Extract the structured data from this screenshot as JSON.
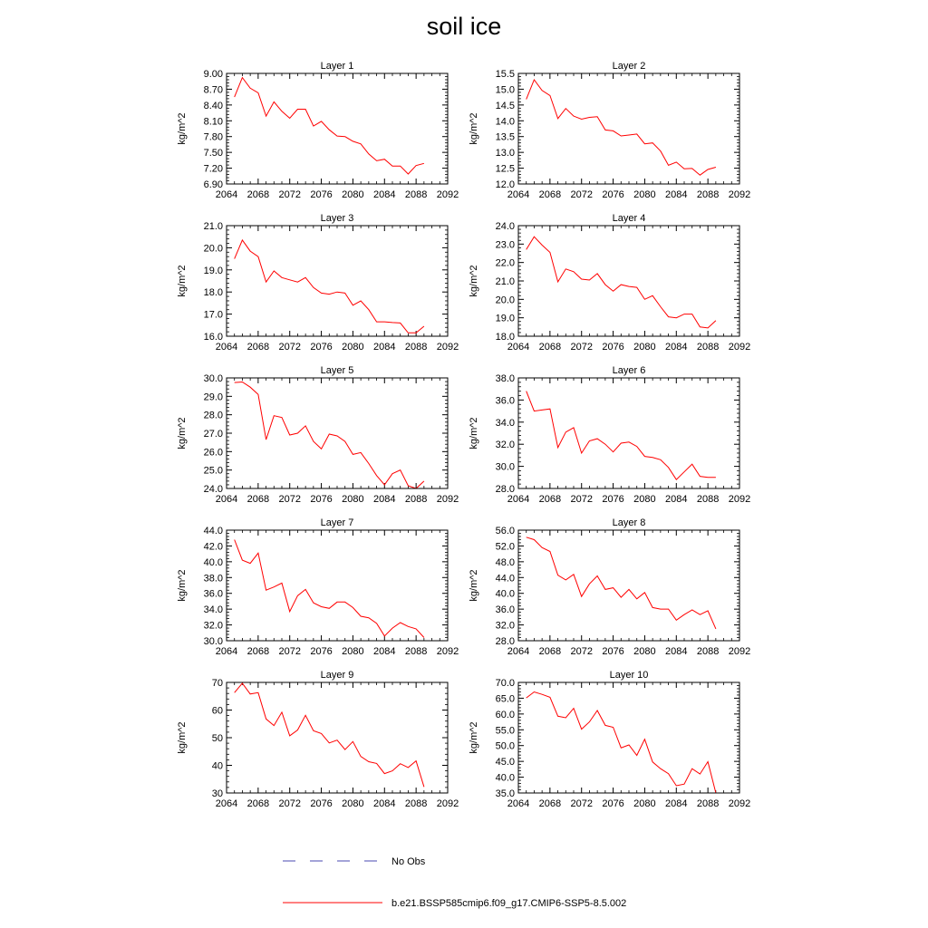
{
  "figure": {
    "title": "soil ice",
    "legend": [
      {
        "label": "No Obs",
        "color": "#4a4ab0",
        "style": "dashed"
      },
      {
        "label": "b.e21.BSSP585cmip6.f09_g17.CMIP6-SSP5-8.5.002",
        "color": "#ff0000",
        "style": "solid"
      }
    ]
  },
  "chart_data": [
    {
      "type": "line",
      "title": "Layer 1",
      "xlabel": "",
      "ylabel": "kg/m^2",
      "xlim": [
        2064,
        2092
      ],
      "ylim": [
        6.9,
        9.0
      ],
      "xticks": [
        2064,
        2068,
        2072,
        2076,
        2080,
        2084,
        2088,
        2092
      ],
      "yticks": [
        6.9,
        7.2,
        7.5,
        7.8,
        8.1,
        8.4,
        8.7,
        9.0
      ],
      "ytick_labels": [
        "6.90",
        "7.20",
        "7.50",
        "7.80",
        "8.10",
        "8.40",
        "8.70",
        "9.00"
      ],
      "series": [
        {
          "color": "#ff0000",
          "x": [
            2065,
            2066,
            2067,
            2068,
            2069,
            2070,
            2071,
            2072,
            2073,
            2074,
            2075,
            2076,
            2077,
            2078,
            2079,
            2080,
            2081,
            2082,
            2083,
            2084,
            2085,
            2086,
            2087,
            2088,
            2089
          ],
          "y": [
            8.55,
            8.92,
            8.72,
            8.63,
            8.19,
            8.46,
            8.28,
            8.15,
            8.32,
            8.32,
            8.0,
            8.09,
            7.93,
            7.81,
            7.8,
            7.71,
            7.66,
            7.47,
            7.34,
            7.37,
            7.24,
            7.24,
            7.09,
            7.25,
            7.29
          ]
        }
      ]
    },
    {
      "type": "line",
      "title": "Layer 2",
      "xlabel": "",
      "ylabel": "kg/m^2",
      "xlim": [
        2064,
        2092
      ],
      "ylim": [
        12.0,
        15.5
      ],
      "xticks": [
        2064,
        2068,
        2072,
        2076,
        2080,
        2084,
        2088,
        2092
      ],
      "yticks": [
        12.0,
        12.5,
        13.0,
        13.5,
        14.0,
        14.5,
        15.0,
        15.5
      ],
      "ytick_labels": [
        "12.0",
        "12.5",
        "13.0",
        "13.5",
        "14.0",
        "14.5",
        "15.0",
        "15.5"
      ],
      "series": [
        {
          "color": "#ff0000",
          "x": [
            2065,
            2066,
            2067,
            2068,
            2069,
            2070,
            2071,
            2072,
            2073,
            2074,
            2075,
            2076,
            2077,
            2078,
            2079,
            2080,
            2081,
            2082,
            2083,
            2084,
            2085,
            2086,
            2087,
            2088,
            2089
          ],
          "y": [
            14.68,
            15.3,
            14.96,
            14.8,
            14.07,
            14.39,
            14.15,
            14.05,
            14.11,
            14.13,
            13.71,
            13.68,
            13.52,
            13.55,
            13.58,
            13.27,
            13.3,
            13.04,
            12.59,
            12.69,
            12.48,
            12.49,
            12.28,
            12.46,
            12.53
          ]
        }
      ]
    },
    {
      "type": "line",
      "title": "Layer 3",
      "xlabel": "",
      "ylabel": "kg/m^2",
      "xlim": [
        2064,
        2092
      ],
      "ylim": [
        16.0,
        21.0
      ],
      "xticks": [
        2064,
        2068,
        2072,
        2076,
        2080,
        2084,
        2088,
        2092
      ],
      "yticks": [
        16,
        17,
        18,
        19,
        20,
        21
      ],
      "ytick_labels": [
        "16.0",
        "17.0",
        "18.0",
        "19.0",
        "20.0",
        "21.0"
      ],
      "series": [
        {
          "color": "#ff0000",
          "x": [
            2065,
            2066,
            2067,
            2068,
            2069,
            2070,
            2071,
            2072,
            2073,
            2074,
            2075,
            2076,
            2077,
            2078,
            2079,
            2080,
            2081,
            2082,
            2083,
            2084,
            2085,
            2086,
            2087,
            2088,
            2089
          ],
          "y": [
            19.5,
            20.35,
            19.85,
            19.6,
            18.45,
            18.95,
            18.65,
            18.55,
            18.45,
            18.65,
            18.2,
            17.95,
            17.9,
            18.0,
            17.95,
            17.4,
            17.6,
            17.2,
            16.65,
            16.65,
            16.62,
            16.6,
            16.15,
            16.15,
            16.45
          ]
        }
      ]
    },
    {
      "type": "line",
      "title": "Layer 4",
      "xlabel": "",
      "ylabel": "kg/m^2",
      "xlim": [
        2064,
        2092
      ],
      "ylim": [
        18.0,
        24.0
      ],
      "xticks": [
        2064,
        2068,
        2072,
        2076,
        2080,
        2084,
        2088,
        2092
      ],
      "yticks": [
        18,
        19,
        20,
        21,
        22,
        23,
        24
      ],
      "ytick_labels": [
        "18.0",
        "19.0",
        "20.0",
        "21.0",
        "22.0",
        "23.0",
        "24.0"
      ],
      "series": [
        {
          "color": "#ff0000",
          "x": [
            2065,
            2066,
            2067,
            2068,
            2069,
            2070,
            2071,
            2072,
            2073,
            2074,
            2075,
            2076,
            2077,
            2078,
            2079,
            2080,
            2081,
            2082,
            2083,
            2084,
            2085,
            2086,
            2087,
            2088,
            2089
          ],
          "y": [
            22.7,
            23.4,
            22.95,
            22.55,
            20.95,
            21.65,
            21.5,
            21.1,
            21.05,
            21.4,
            20.8,
            20.45,
            20.8,
            20.7,
            20.65,
            20.0,
            20.2,
            19.6,
            19.05,
            19.0,
            19.2,
            19.2,
            18.5,
            18.45,
            18.85
          ]
        }
      ]
    },
    {
      "type": "line",
      "title": "Layer 5",
      "xlabel": "",
      "ylabel": "kg/m^2",
      "xlim": [
        2064,
        2092
      ],
      "ylim": [
        24.0,
        30.0
      ],
      "xticks": [
        2064,
        2068,
        2072,
        2076,
        2080,
        2084,
        2088,
        2092
      ],
      "yticks": [
        24,
        25,
        26,
        27,
        28,
        29,
        30
      ],
      "ytick_labels": [
        "24.0",
        "25.0",
        "26.0",
        "27.0",
        "28.0",
        "29.0",
        "30.0"
      ],
      "series": [
        {
          "color": "#ff0000",
          "x": [
            2065,
            2066,
            2067,
            2068,
            2069,
            2070,
            2071,
            2072,
            2073,
            2074,
            2075,
            2076,
            2077,
            2078,
            2079,
            2080,
            2081,
            2082,
            2083,
            2084,
            2085,
            2086,
            2087,
            2088,
            2089
          ],
          "y": [
            29.75,
            29.78,
            29.5,
            29.1,
            26.65,
            27.95,
            27.85,
            26.9,
            27.0,
            27.4,
            26.55,
            26.15,
            26.95,
            26.85,
            26.55,
            25.85,
            25.95,
            25.35,
            24.7,
            24.2,
            24.8,
            25.0,
            24.15,
            24.0,
            24.4
          ]
        }
      ]
    },
    {
      "type": "line",
      "title": "Layer 6",
      "xlabel": "",
      "ylabel": "kg/m^2",
      "xlim": [
        2064,
        2092
      ],
      "ylim": [
        28.0,
        38.0
      ],
      "xticks": [
        2064,
        2068,
        2072,
        2076,
        2080,
        2084,
        2088,
        2092
      ],
      "yticks": [
        28,
        30,
        32,
        34,
        36,
        38
      ],
      "ytick_labels": [
        "28.0",
        "30.0",
        "32.0",
        "34.0",
        "36.0",
        "38.0"
      ],
      "series": [
        {
          "color": "#ff0000",
          "x": [
            2065,
            2066,
            2067,
            2068,
            2069,
            2070,
            2071,
            2072,
            2073,
            2074,
            2075,
            2076,
            2077,
            2078,
            2079,
            2080,
            2081,
            2082,
            2083,
            2084,
            2085,
            2086,
            2087,
            2088,
            2089
          ],
          "y": [
            36.8,
            35.0,
            35.1,
            35.2,
            31.7,
            33.1,
            33.5,
            31.2,
            32.3,
            32.5,
            32.0,
            31.3,
            32.1,
            32.2,
            31.8,
            30.9,
            30.8,
            30.6,
            29.9,
            28.8,
            29.5,
            30.2,
            29.1,
            29.0,
            29.0
          ]
        }
      ]
    },
    {
      "type": "line",
      "title": "Layer 7",
      "xlabel": "",
      "ylabel": "kg/m^2",
      "xlim": [
        2064,
        2092
      ],
      "ylim": [
        30.0,
        44.0
      ],
      "xticks": [
        2064,
        2068,
        2072,
        2076,
        2080,
        2084,
        2088,
        2092
      ],
      "yticks": [
        30,
        32,
        34,
        36,
        38,
        40,
        42,
        44
      ],
      "ytick_labels": [
        "30.0",
        "32.0",
        "34.0",
        "36.0",
        "38.0",
        "40.0",
        "42.0",
        "44.0"
      ],
      "series": [
        {
          "color": "#ff0000",
          "x": [
            2065,
            2066,
            2067,
            2068,
            2069,
            2070,
            2071,
            2072,
            2073,
            2074,
            2075,
            2076,
            2077,
            2078,
            2079,
            2080,
            2081,
            2082,
            2083,
            2084,
            2085,
            2086,
            2087,
            2088,
            2089
          ],
          "y": [
            42.8,
            40.2,
            39.8,
            41.1,
            36.4,
            36.8,
            37.3,
            33.7,
            35.7,
            36.5,
            34.8,
            34.3,
            34.1,
            34.9,
            34.9,
            34.2,
            33.1,
            32.9,
            32.2,
            30.6,
            31.6,
            32.3,
            31.8,
            31.5,
            30.4
          ]
        }
      ]
    },
    {
      "type": "line",
      "title": "Layer 8",
      "xlabel": "",
      "ylabel": "kg/m^2",
      "xlim": [
        2064,
        2092
      ],
      "ylim": [
        28.0,
        56.0
      ],
      "xticks": [
        2064,
        2068,
        2072,
        2076,
        2080,
        2084,
        2088,
        2092
      ],
      "yticks": [
        28,
        32,
        36,
        40,
        44,
        48,
        52,
        56
      ],
      "ytick_labels": [
        "28.0",
        "32.0",
        "36.0",
        "40.0",
        "44.0",
        "48.0",
        "52.0",
        "56.0"
      ],
      "series": [
        {
          "color": "#ff0000",
          "x": [
            2065,
            2066,
            2067,
            2068,
            2069,
            2070,
            2071,
            2072,
            2073,
            2074,
            2075,
            2076,
            2077,
            2078,
            2079,
            2080,
            2081,
            2082,
            2083,
            2084,
            2085,
            2086,
            2087,
            2088,
            2089
          ],
          "y": [
            54.2,
            53.6,
            51.6,
            50.6,
            44.6,
            43.4,
            44.8,
            39.2,
            42.4,
            44.4,
            41.0,
            41.4,
            39.0,
            41.0,
            38.6,
            40.2,
            36.4,
            36.0,
            36.0,
            33.2,
            34.6,
            35.8,
            34.6,
            35.6,
            31.0
          ]
        }
      ]
    },
    {
      "type": "line",
      "title": "Layer 9",
      "xlabel": "",
      "ylabel": "kg/m^2",
      "xlim": [
        2064,
        2092
      ],
      "ylim": [
        30,
        70
      ],
      "xticks": [
        2064,
        2068,
        2072,
        2076,
        2080,
        2084,
        2088,
        2092
      ],
      "yticks": [
        30,
        40,
        50,
        60,
        70
      ],
      "ytick_labels": [
        "30",
        "40",
        "50",
        "60",
        "70"
      ],
      "series": [
        {
          "color": "#ff0000",
          "x": [
            2065,
            2066,
            2067,
            2068,
            2069,
            2070,
            2071,
            2072,
            2073,
            2074,
            2075,
            2076,
            2077,
            2078,
            2079,
            2080,
            2081,
            2082,
            2083,
            2084,
            2085,
            2086,
            2087,
            2088,
            2089
          ],
          "y": [
            66.3,
            69.7,
            65.8,
            66.3,
            56.8,
            54.4,
            59.2,
            50.7,
            52.8,
            58.1,
            52.5,
            51.5,
            48.1,
            49.1,
            45.7,
            48.6,
            43.2,
            41.3,
            40.7,
            37.0,
            38.0,
            40.6,
            39.2,
            41.6,
            32.2
          ]
        }
      ]
    },
    {
      "type": "line",
      "title": "Layer 10",
      "xlabel": "",
      "ylabel": "kg/m^2",
      "xlim": [
        2064,
        2092
      ],
      "ylim": [
        35.0,
        70.0
      ],
      "xticks": [
        2064,
        2068,
        2072,
        2076,
        2080,
        2084,
        2088,
        2092
      ],
      "yticks": [
        35,
        40,
        45,
        50,
        55,
        60,
        65,
        70
      ],
      "ytick_labels": [
        "35.0",
        "40.0",
        "45.0",
        "50.0",
        "55.0",
        "60.0",
        "65.0",
        "70.0"
      ],
      "series": [
        {
          "color": "#ff0000",
          "x": [
            2065,
            2066,
            2067,
            2068,
            2069,
            2070,
            2071,
            2072,
            2073,
            2074,
            2075,
            2076,
            2077,
            2078,
            2079,
            2080,
            2081,
            2082,
            2083,
            2084,
            2085,
            2086,
            2087,
            2088,
            2089
          ],
          "y": [
            65.1,
            67.0,
            66.2,
            65.3,
            59.3,
            58.8,
            61.8,
            55.2,
            57.5,
            61.1,
            56.4,
            55.8,
            49.3,
            50.2,
            46.9,
            52.0,
            44.8,
            42.7,
            41.1,
            37.3,
            37.8,
            42.7,
            41.0,
            44.9,
            35.0
          ]
        }
      ]
    }
  ]
}
